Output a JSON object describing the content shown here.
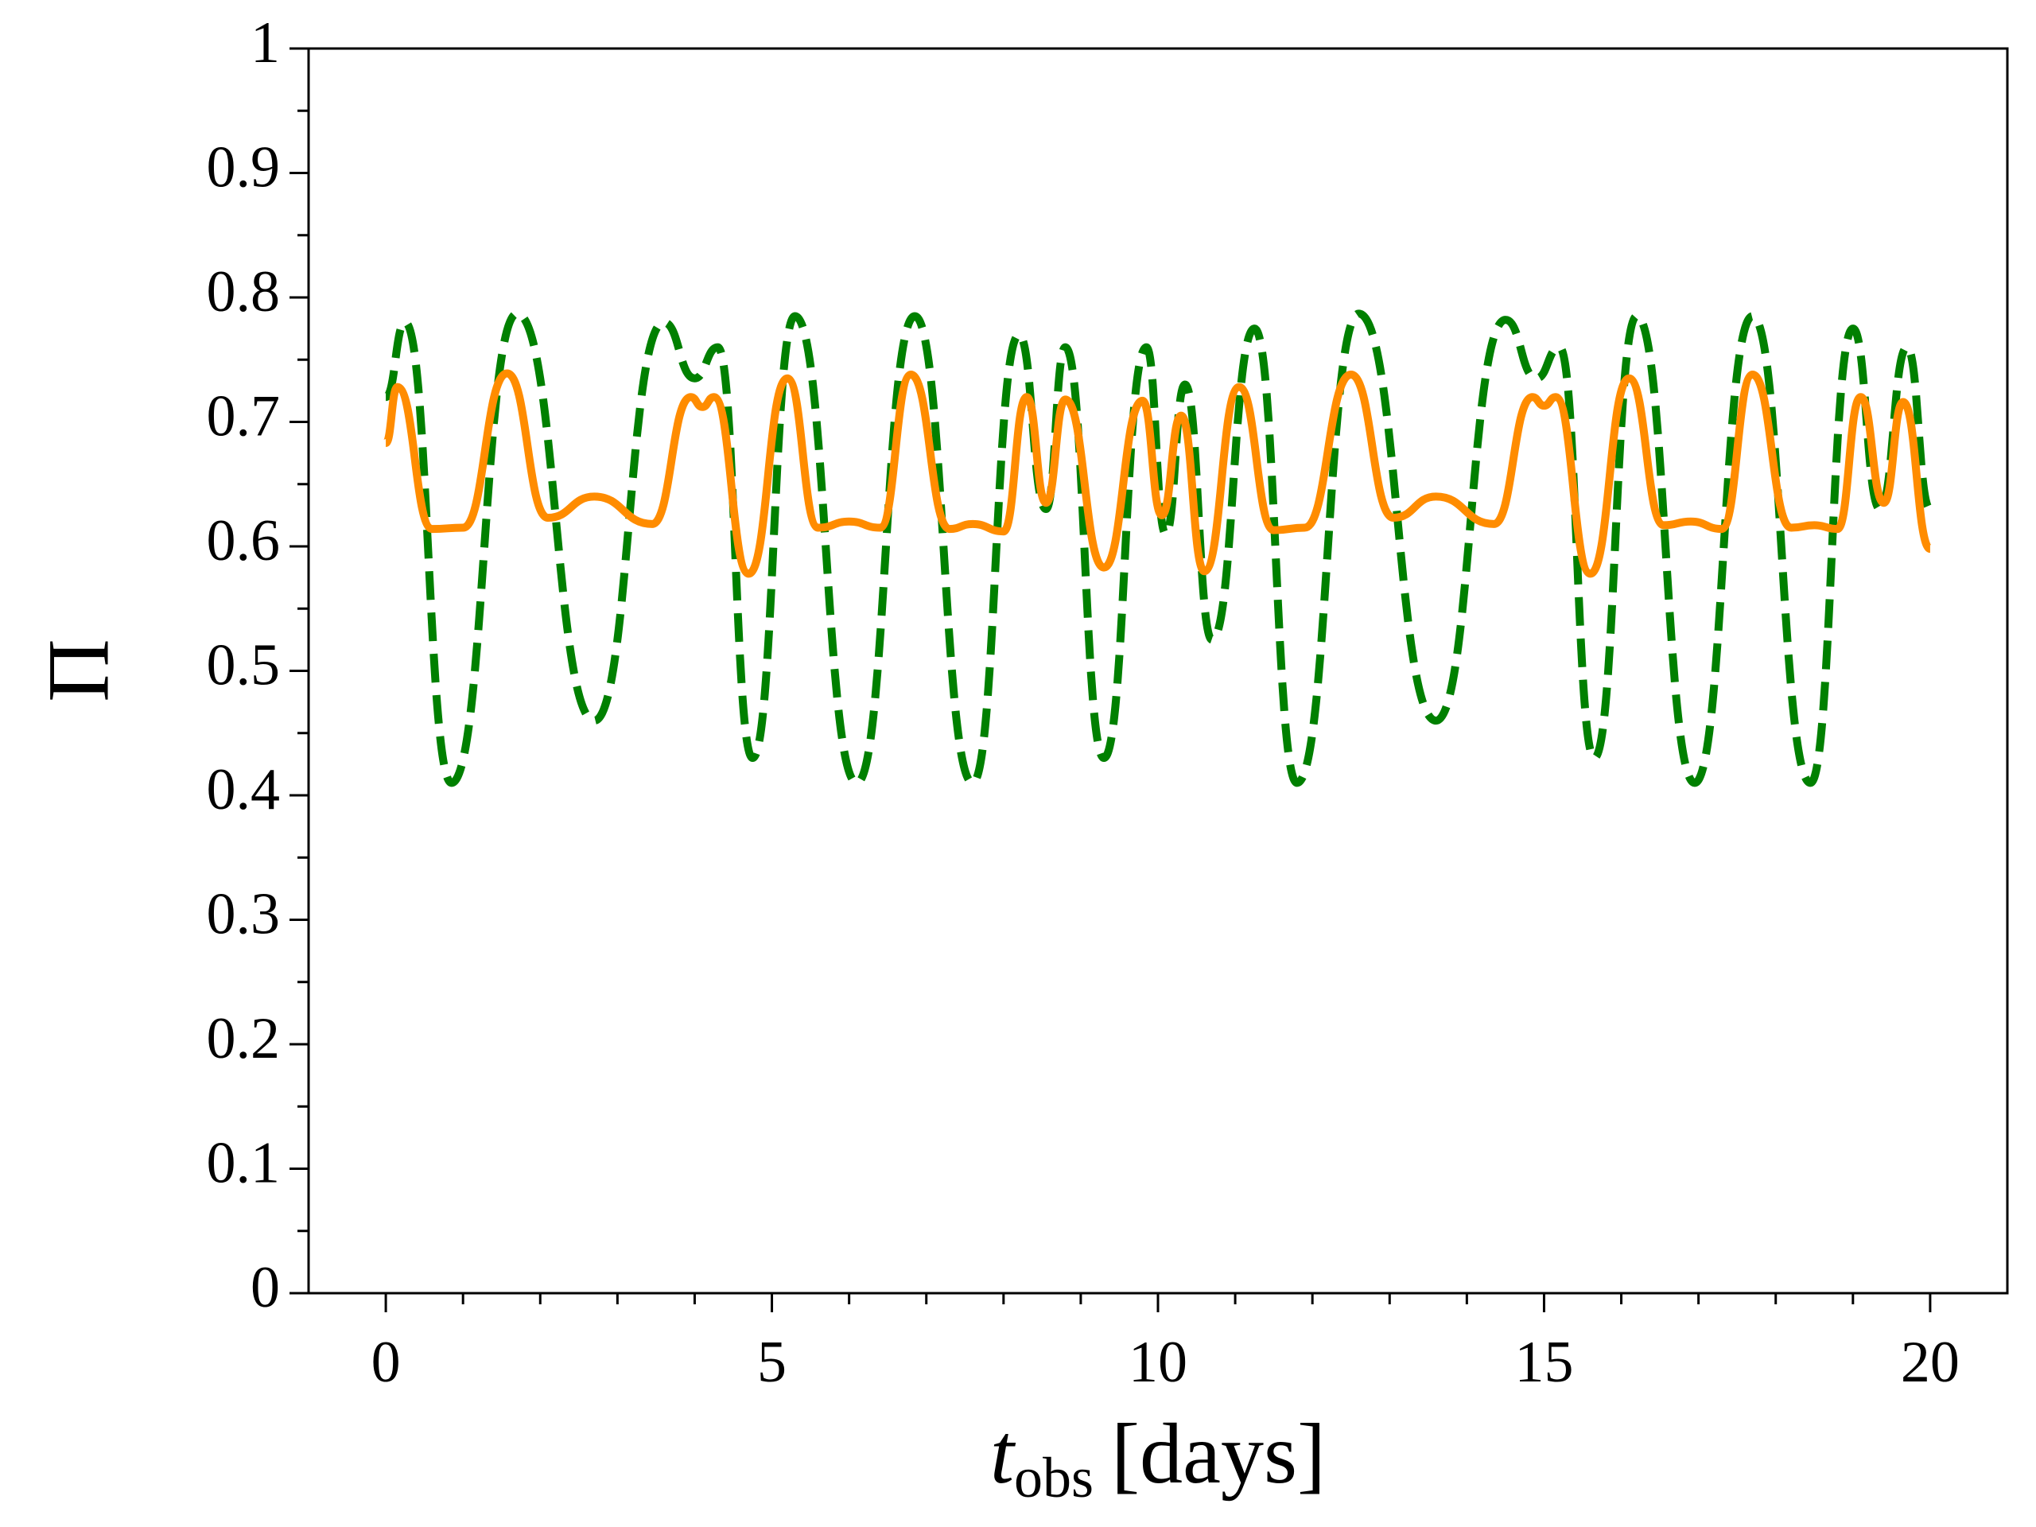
{
  "chart_data": {
    "type": "line",
    "ylabel": "Π",
    "xlabel": [
      "t",
      "obs",
      "[days]"
    ],
    "xlim": [
      -1,
      21
    ],
    "ylim": [
      0,
      1
    ],
    "xticks": [
      0,
      5,
      10,
      15,
      20
    ],
    "yticks": [
      0,
      0.1,
      0.2,
      0.3,
      0.4,
      0.5,
      0.6,
      0.7,
      0.8,
      0.9,
      1
    ],
    "xticks_minor": [
      1,
      2,
      3,
      4,
      6,
      7,
      8,
      9,
      11,
      12,
      13,
      14,
      16,
      17,
      18,
      19
    ],
    "yticks_minor": [
      0.05,
      0.15,
      0.25,
      0.35,
      0.45,
      0.55,
      0.65,
      0.75,
      0.85,
      0.95
    ],
    "grid": false,
    "series": [
      {
        "color": "#008000",
        "dashed": true,
        "x": [
          0,
          0.25,
          0.85,
          1.7,
          2.7,
          3.6,
          4.0,
          4.3,
          4.75,
          5.3,
          6.1,
          6.85,
          7.6,
          8.2,
          8.55,
          8.8,
          9.3,
          9.85,
          10.1,
          10.35,
          10.7,
          11.25,
          11.8,
          12.6,
          13.6,
          14.5,
          14.9,
          15.2,
          15.65,
          16.2,
          16.95,
          17.7,
          18.45,
          19.0,
          19.35,
          19.7,
          20
        ],
        "values": [
          0.72,
          0.78,
          0.41,
          0.787,
          0.46,
          0.78,
          0.735,
          0.76,
          0.43,
          0.785,
          0.41,
          0.785,
          0.41,
          0.77,
          0.63,
          0.76,
          0.43,
          0.76,
          0.61,
          0.73,
          0.525,
          0.775,
          0.41,
          0.787,
          0.46,
          0.782,
          0.735,
          0.76,
          0.43,
          0.785,
          0.41,
          0.785,
          0.41,
          0.775,
          0.63,
          0.76,
          0.63
        ]
      },
      {
        "color": "#ff8c00",
        "dashed": false,
        "x": [
          0,
          0.15,
          0.6,
          1.0,
          1.57,
          2.1,
          2.7,
          3.45,
          3.95,
          4.1,
          4.25,
          4.7,
          5.2,
          5.6,
          6.0,
          6.4,
          6.8,
          7.3,
          7.6,
          8.0,
          8.3,
          8.55,
          8.8,
          9.3,
          9.8,
          10.05,
          10.3,
          10.6,
          11.05,
          11.5,
          11.9,
          12.5,
          13.05,
          13.6,
          14.35,
          14.85,
          15.0,
          15.15,
          15.6,
          16.1,
          16.55,
          16.9,
          17.3,
          17.7,
          18.2,
          18.5,
          18.8,
          19.1,
          19.4,
          19.65,
          20
        ],
        "values": [
          0.683,
          0.728,
          0.614,
          0.615,
          0.739,
          0.623,
          0.64,
          0.618,
          0.72,
          0.712,
          0.72,
          0.578,
          0.735,
          0.615,
          0.62,
          0.615,
          0.738,
          0.614,
          0.618,
          0.612,
          0.72,
          0.635,
          0.718,
          0.583,
          0.717,
          0.625,
          0.705,
          0.58,
          0.728,
          0.613,
          0.615,
          0.738,
          0.623,
          0.64,
          0.618,
          0.72,
          0.713,
          0.72,
          0.578,
          0.735,
          0.617,
          0.62,
          0.614,
          0.738,
          0.615,
          0.617,
          0.614,
          0.72,
          0.635,
          0.716,
          0.598
        ]
      }
    ]
  }
}
